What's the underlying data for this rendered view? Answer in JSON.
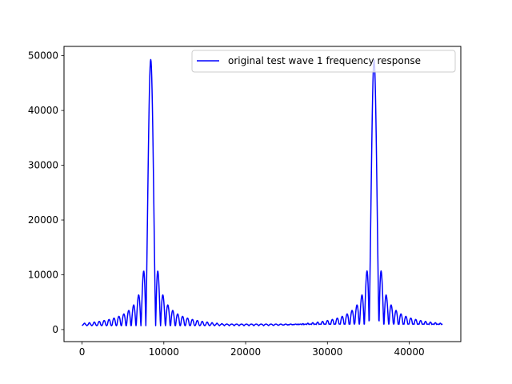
{
  "chart_data": {
    "type": "line",
    "title": "",
    "xlabel": "",
    "ylabel": "",
    "xlim": [
      -2205,
      46305
    ],
    "ylim": [
      -2200,
      51700
    ],
    "xticks": [
      0,
      10000,
      20000,
      30000,
      40000
    ],
    "xtick_labels": [
      "0",
      "10000",
      "20000",
      "30000",
      "40000"
    ],
    "yticks": [
      0,
      10000,
      20000,
      30000,
      40000,
      50000
    ],
    "ytick_labels": [
      "0",
      "10000",
      "20000",
      "30000",
      "40000",
      "50000"
    ],
    "grid": false,
    "legend_position": "top-right",
    "series": [
      {
        "name": "original test wave 1 frequency response",
        "color": "#0000ff",
        "x": [
          0,
          8400,
          9000,
          35100,
          35700,
          44100
        ],
        "y": [
          700,
          49300,
          10800,
          10800,
          49300,
          700
        ]
      }
    ]
  }
}
